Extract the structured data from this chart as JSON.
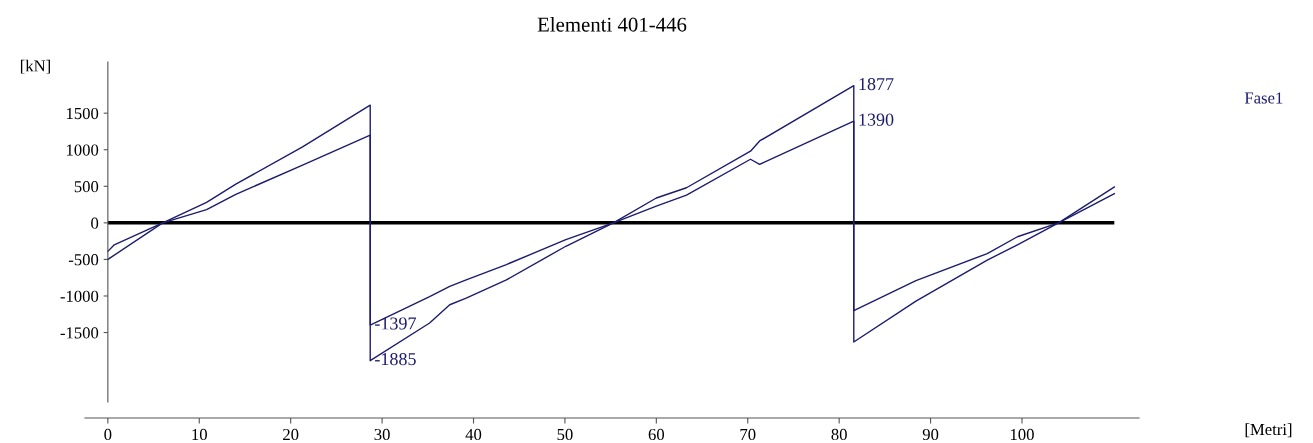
{
  "chart_data": {
    "type": "line",
    "title": "Elementi 401-446",
    "ylabel": "[kN]",
    "xlim": [
      -2.5,
      112.8
    ],
    "xticks": [
      0,
      10,
      20,
      30,
      40,
      50,
      60,
      70,
      80,
      90,
      100
    ],
    "ylim": [
      -2450,
      2200
    ],
    "yticks": [
      -1500,
      -1000,
      -500,
      0,
      500,
      1000,
      1500
    ],
    "grid": false,
    "legend": false,
    "marker": "none",
    "line_style": "solid",
    "series": [
      {
        "color": "#1c1c6e",
        "x": [
          0,
          0.7,
          6.0,
          10.8,
          14.0,
          21.3,
          28.7,
          28.7,
          35.2,
          37.4,
          39.2,
          43.6,
          50.1,
          55.3,
          60.0,
          63.3,
          70.3,
          71.3,
          81.6,
          81.6,
          88.4,
          96.2,
          99.5,
          104.0,
          110.1
        ],
        "values": [
          -390,
          -300,
          0,
          280,
          530,
          1040,
          1610,
          -1397,
          -1010,
          -870,
          -780,
          -570,
          -230,
          0,
          340,
          480,
          980,
          1120,
          1877,
          -1200,
          -790,
          -420,
          -190,
          0,
          490
        ],
        "value_labels": [
          null,
          null,
          null,
          null,
          null,
          null,
          null,
          "-1397",
          null,
          null,
          null,
          null,
          null,
          null,
          null,
          null,
          null,
          null,
          "1877",
          null,
          null,
          null,
          null,
          null,
          null
        ]
      },
      {
        "color": "#1c1c6e",
        "x": [
          0,
          6.0,
          10.8,
          14.0,
          21.3,
          28.7,
          28.7,
          35.2,
          37.4,
          39.2,
          43.6,
          50.1,
          55.3,
          60.0,
          63.3,
          70.3,
          71.3,
          81.6,
          81.6,
          88.4,
          96.2,
          99.5,
          104.0,
          110.1
        ],
        "values": [
          -500,
          0,
          180,
          390,
          790,
          1200,
          -1885,
          -1370,
          -1120,
          -1030,
          -780,
          -320,
          0,
          230,
          380,
          870,
          800,
          1390,
          -1630,
          -1070,
          -510,
          -300,
          0,
          400
        ],
        "value_labels": [
          null,
          null,
          null,
          null,
          null,
          null,
          "-1885",
          null,
          null,
          null,
          null,
          null,
          null,
          null,
          null,
          null,
          null,
          "1390",
          null,
          null,
          null,
          null,
          null,
          null
        ]
      }
    ],
    "ref_lines": [
      {
        "axis": "y",
        "value": 0,
        "color": "#000000"
      }
    ],
    "annotations": [
      "Fase1",
      "[Metri]"
    ]
  }
}
